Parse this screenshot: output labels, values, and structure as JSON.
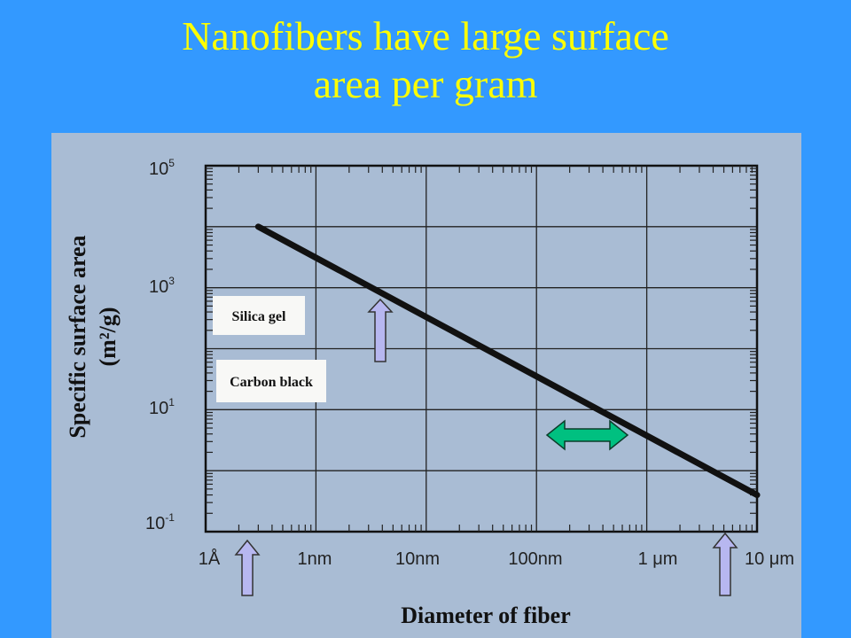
{
  "slide": {
    "title_line1": "Nanofibers have large surface",
    "title_line2": "area per gram"
  },
  "chart_data": {
    "type": "line",
    "title": "",
    "xlabel": "Diameter of fiber",
    "ylabel_line1": "Specific surface area",
    "ylabel_line2": "(m²/g)",
    "x_scale": "log",
    "y_scale": "log",
    "xlim": [
      "1Å",
      "10 μm"
    ],
    "ylim": [
      0.1,
      100000
    ],
    "x_ticks": [
      "1Å",
      "1nm",
      "10nm",
      "100nm",
      "1 μm",
      "10 μm"
    ],
    "y_ticks": [
      {
        "base": "10",
        "exp": "5"
      },
      {
        "base": "10",
        "exp": "3"
      },
      {
        "base": "10",
        "exp": "1"
      },
      {
        "base": "10",
        "exp": "-1"
      }
    ],
    "grid": true,
    "series": [
      {
        "x": [
          "0.3 nm",
          "10 μm"
        ],
        "y": [
          10000,
          0.4
        ]
      }
    ],
    "annotations": [
      "Silica gel",
      "Carbon black"
    ],
    "colors": {
      "line": "#111111",
      "grid": "#222222",
      "up_arrow": "#b7b7f0",
      "double_arrow": "#00c080"
    }
  }
}
